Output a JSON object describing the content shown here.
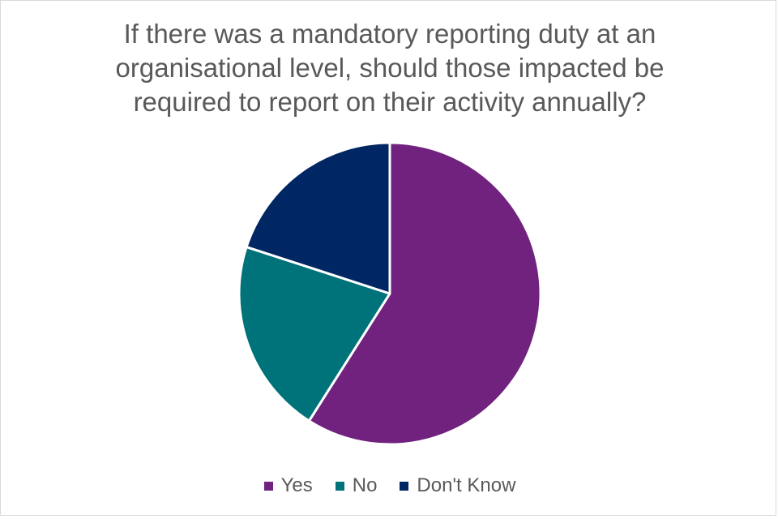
{
  "chart_data": {
    "type": "pie",
    "title": "If there was a mandatory reporting duty at an\norganisational level, should those impacted be\nrequired to report on their activity annually?",
    "slices": [
      {
        "label": "Yes",
        "value": 59,
        "color": "#70227e"
      },
      {
        "label": "No",
        "value": 21,
        "color": "#00727a"
      },
      {
        "label": "Don't Know",
        "value": 20,
        "color": "#002663"
      }
    ],
    "start_angle_deg": 0,
    "direction": "clockwise",
    "slice_border_color": "#ffffff",
    "legend_position": "bottom",
    "grid": false
  }
}
